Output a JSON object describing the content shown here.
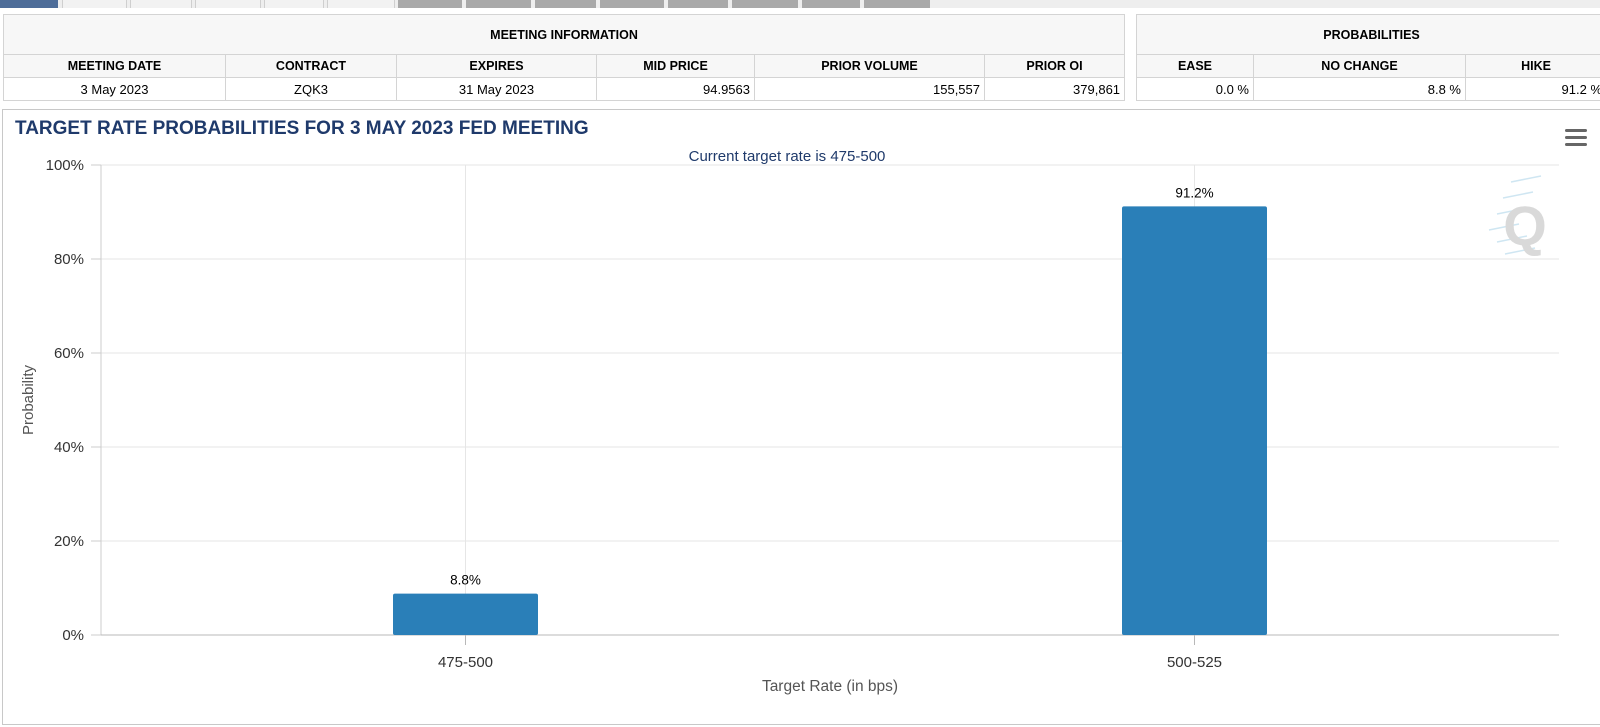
{
  "meeting_info": {
    "header": "MEETING INFORMATION",
    "columns": [
      "MEETING DATE",
      "CONTRACT",
      "EXPIRES",
      "MID PRICE",
      "PRIOR VOLUME",
      "PRIOR OI"
    ],
    "row": {
      "meeting_date": "3 May 2023",
      "contract": "ZQK3",
      "expires": "31 May 2023",
      "mid_price": "94.9563",
      "prior_volume": "155,557",
      "prior_oi": "379,861"
    }
  },
  "probabilities": {
    "header": "PROBABILITIES",
    "columns": [
      "EASE",
      "NO CHANGE",
      "HIKE"
    ],
    "row": {
      "ease": "0.0 %",
      "no_change": "8.8 %",
      "hike": "91.2 %"
    }
  },
  "chart_data": {
    "type": "bar",
    "title": "TARGET RATE PROBABILITIES FOR 3 MAY 2023 FED MEETING",
    "subtitle": "Current target rate is 475-500",
    "xlabel": "Target Rate (in bps)",
    "ylabel": "Probability",
    "categories": [
      "475-500",
      "500-525"
    ],
    "values": [
      8.8,
      91.2
    ],
    "data_labels": [
      "8.8%",
      "91.2%"
    ],
    "ylim": [
      0,
      100
    ],
    "yticks": [
      0,
      20,
      40,
      60,
      80,
      100
    ],
    "ytick_labels": [
      "0%",
      "20%",
      "40%",
      "60%",
      "80%",
      "100%"
    ],
    "grid": true,
    "bar_color": "#2a7fb8",
    "title_color": "#1f3a6b",
    "watermark": "Q"
  },
  "icons": {
    "menu": "hamburger-menu-icon",
    "watermark": "q-logo-icon"
  }
}
